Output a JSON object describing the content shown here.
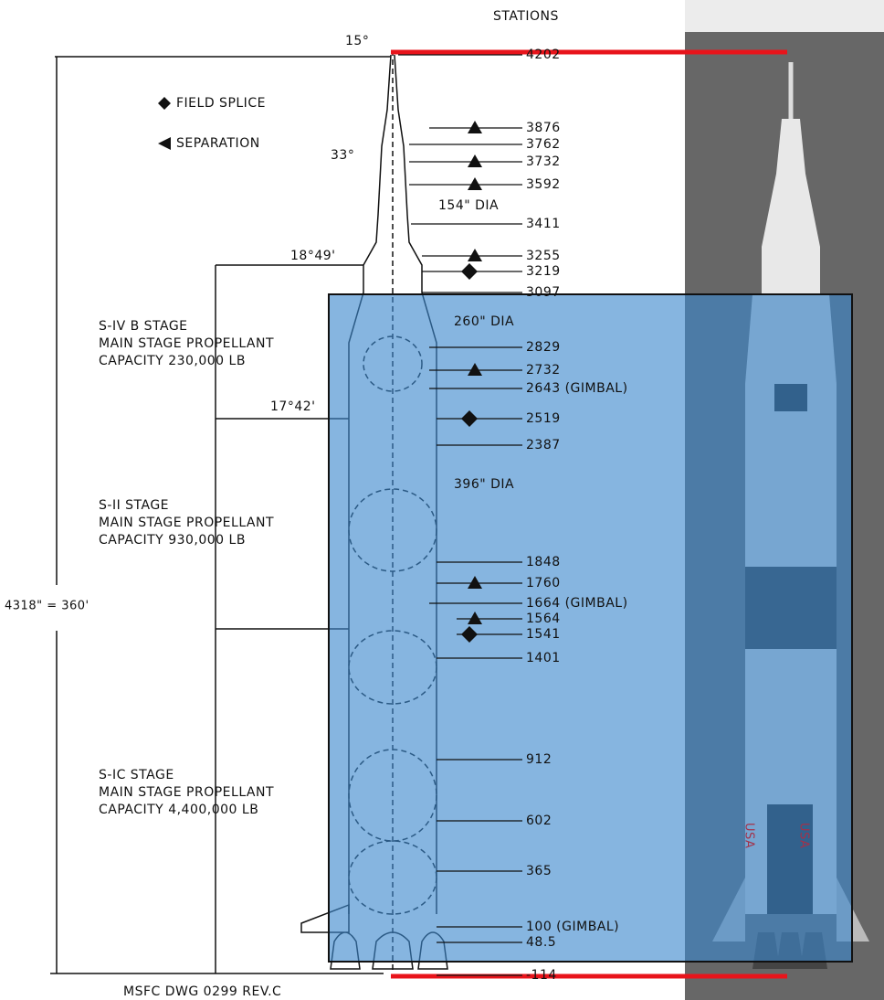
{
  "header": {
    "title": "STATIONS"
  },
  "legend": [
    {
      "label": "FIELD SPLICE"
    },
    {
      "label": "SEPARATION"
    }
  ],
  "stations": [
    "4202",
    "3876",
    "3762",
    "3732",
    "3592",
    "3411",
    "3255",
    "3219",
    "3097",
    "2829",
    "2732",
    "2643 (GIMBAL)",
    "2519",
    "2387",
    "1848",
    "1760",
    "1664 (GIMBAL)",
    "1564",
    "1541",
    "1401",
    "912",
    "602",
    "365",
    "100 (GIMBAL)",
    "48.5",
    "-114"
  ],
  "diameters": [
    "154\" DIA",
    "260\" DIA",
    "396\" DIA"
  ],
  "angles": [
    "15°",
    "33°",
    "18°49'",
    "17°42'"
  ],
  "stages": [
    {
      "name": "S-IV B STAGE",
      "lines": [
        "MAIN STAGE PROPELLANT",
        "CAPACITY 230,000 LB"
      ]
    },
    {
      "name": "S-II STAGE",
      "lines": [
        "MAIN STAGE PROPELLANT",
        "CAPACITY 930,000 LB"
      ]
    },
    {
      "name": "S-IC STAGE",
      "lines": [
        "MAIN STAGE PROPELLANT",
        "CAPACITY 4,400,000 LB"
      ]
    }
  ],
  "overall_length": "4318\" = 360'",
  "footer": "MSFC DWG 0299 REV.C",
  "rocket_labels": [
    "USA",
    "USA"
  ]
}
